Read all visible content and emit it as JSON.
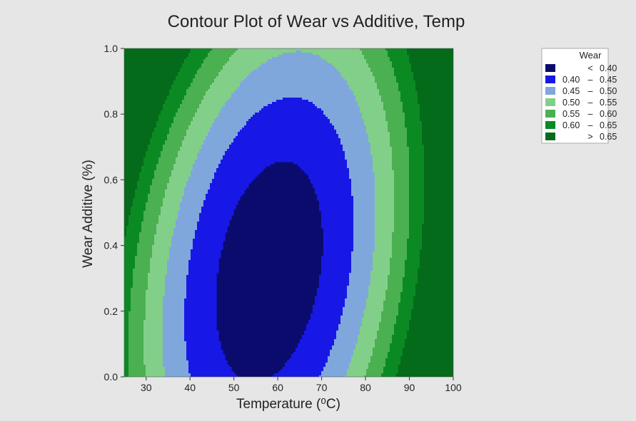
{
  "chart_data": {
    "type": "contour",
    "title": "Contour Plot of Wear vs Additive, Temp",
    "xlabel": "Temperature (⁰C)",
    "ylabel": "Wear Additive (%)",
    "xlim": [
      25,
      100
    ],
    "ylim": [
      0,
      1.0
    ],
    "xticks": [
      "30",
      "40",
      "50",
      "60",
      "70",
      "80",
      "90",
      "100"
    ],
    "yticks": [
      "0.0",
      "0.2",
      "0.4",
      "0.6",
      "0.8",
      "1.0"
    ],
    "legend": {
      "title": "Wear",
      "position": "right",
      "entries": [
        {
          "label_left": "",
          "sep": "<",
          "label_right": "0.40",
          "color": "#0b0b6e"
        },
        {
          "label_left": "0.40",
          "sep": "–",
          "label_right": "0.45",
          "color": "#1818e6"
        },
        {
          "label_left": "0.45",
          "sep": "–",
          "label_right": "0.50",
          "color": "#7fa7dc"
        },
        {
          "label_left": "0.50",
          "sep": "–",
          "label_right": "0.55",
          "color": "#82cf8a"
        },
        {
          "label_left": "0.55",
          "sep": "–",
          "label_right": "0.60",
          "color": "#4bb050"
        },
        {
          "label_left": "0.60",
          "sep": "–",
          "label_right": "0.65",
          "color": "#0b8a24"
        },
        {
          "label_left": "",
          "sep": ">",
          "label_right": "0.65",
          "color": "#046b1a"
        }
      ]
    },
    "contour_levels": [
      0.4,
      0.45,
      0.5,
      0.55,
      0.6,
      0.65
    ]
  }
}
